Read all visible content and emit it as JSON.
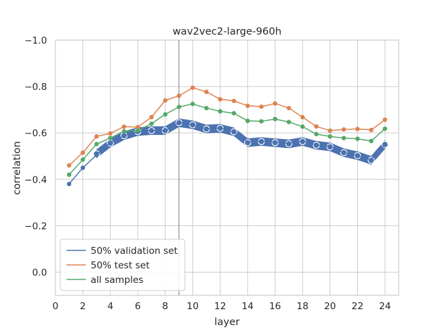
{
  "chart_data": {
    "type": "line",
    "title": "wav2vec2-large-960h",
    "xlabel": "layer",
    "ylabel": "correlation",
    "xlim": [
      0,
      25
    ],
    "ylim": [
      0.1,
      -1.0
    ],
    "y_axis_inverted": true,
    "grid": true,
    "legend_placement": "lower-left",
    "x_ticks": [
      0,
      2,
      4,
      6,
      8,
      10,
      12,
      14,
      16,
      18,
      20,
      22,
      24
    ],
    "x_tick_labels": [
      "0",
      "2",
      "4",
      "6",
      "8",
      "10",
      "12",
      "14",
      "16",
      "18",
      "20",
      "22",
      "24"
    ],
    "y_ticks": [
      -1.0,
      -0.8,
      -0.6,
      -0.4,
      -0.2,
      0.0
    ],
    "y_tick_labels": [
      "−1.0",
      "−0.8",
      "−0.6",
      "−0.4",
      "−0.2",
      "0.0"
    ],
    "vertical_line_x": 9,
    "x": [
      1,
      2,
      3,
      4,
      5,
      6,
      7,
      8,
      9,
      10,
      11,
      12,
      13,
      14,
      15,
      16,
      17,
      18,
      19,
      20,
      21,
      22,
      23,
      24
    ],
    "series": [
      {
        "name": "50% validation set",
        "color": "#4c72b0",
        "values": [
          -0.38,
          -0.45,
          -0.505,
          -0.558,
          -0.588,
          -0.605,
          -0.61,
          -0.61,
          -0.645,
          -0.635,
          -0.617,
          -0.622,
          -0.605,
          -0.56,
          -0.565,
          -0.56,
          -0.555,
          -0.565,
          -0.548,
          -0.542,
          -0.515,
          -0.502,
          -0.483,
          -0.552
        ]
      },
      {
        "name": "50% test set",
        "color": "#dd8452",
        "values": [
          -0.46,
          -0.515,
          -0.585,
          -0.598,
          -0.627,
          -0.625,
          -0.668,
          -0.74,
          -0.76,
          -0.795,
          -0.777,
          -0.745,
          -0.738,
          -0.717,
          -0.713,
          -0.727,
          -0.707,
          -0.668,
          -0.628,
          -0.61,
          -0.615,
          -0.617,
          -0.613,
          -0.657
        ]
      },
      {
        "name": "all samples",
        "color": "#55a868",
        "values": [
          -0.42,
          -0.485,
          -0.552,
          -0.578,
          -0.607,
          -0.61,
          -0.64,
          -0.68,
          -0.712,
          -0.725,
          -0.707,
          -0.693,
          -0.685,
          -0.652,
          -0.65,
          -0.66,
          -0.647,
          -0.627,
          -0.595,
          -0.585,
          -0.578,
          -0.575,
          -0.565,
          -0.618
        ]
      }
    ],
    "validation_band": {
      "color": "#4c72b0",
      "x": [
        3,
        4,
        5,
        6,
        7,
        8,
        9,
        10,
        11,
        12,
        13,
        14,
        15,
        16,
        17,
        18,
        19,
        20,
        21,
        22,
        23,
        24
      ],
      "center": [
        -0.51,
        -0.556,
        -0.588,
        -0.606,
        -0.61,
        -0.61,
        -0.644,
        -0.635,
        -0.617,
        -0.62,
        -0.605,
        -0.558,
        -0.563,
        -0.558,
        -0.553,
        -0.563,
        -0.547,
        -0.54,
        -0.515,
        -0.502,
        -0.482,
        -0.55
      ],
      "half_width": 0.017,
      "markers": "open-circles"
    }
  }
}
